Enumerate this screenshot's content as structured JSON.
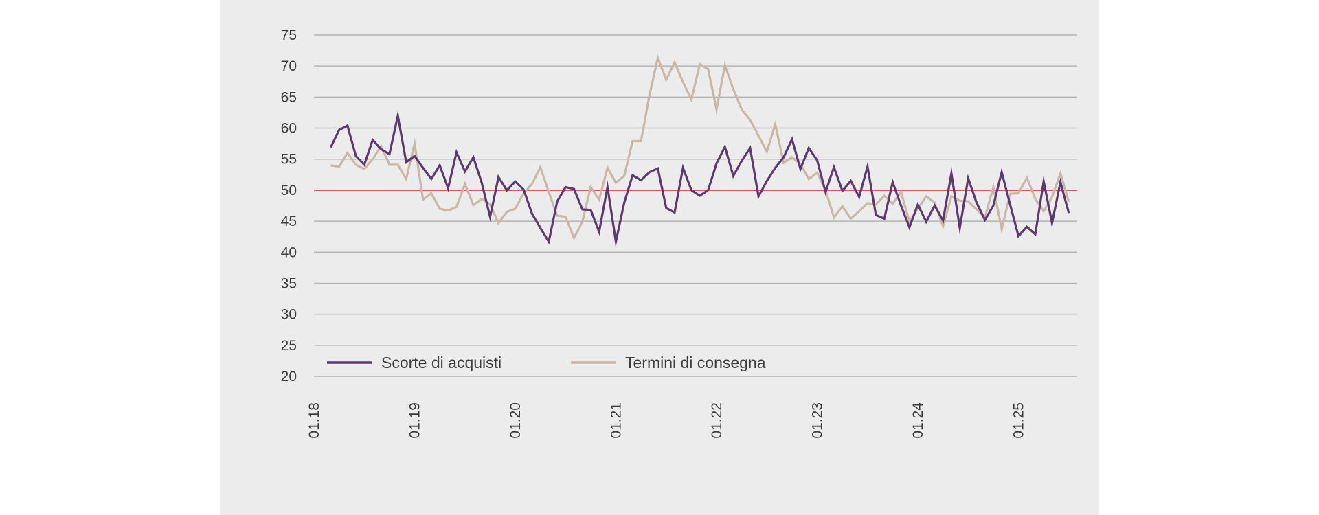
{
  "chart_data": {
    "type": "line",
    "title": "",
    "xlabel": "",
    "ylabel": "",
    "ylim": [
      20,
      75
    ],
    "y_ticks": [
      "75",
      "70",
      "65",
      "60",
      "55",
      "50",
      "45",
      "40",
      "35",
      "30",
      "25",
      "20"
    ],
    "x_ticks": [
      "01.18",
      "01.19",
      "01.20",
      "01.21",
      "01.22",
      "01.23",
      "01.24",
      "01.25"
    ],
    "x_start": "2018-01",
    "x_end": "2025-08",
    "reference_line": {
      "value": 50,
      "color": "#d9282f"
    },
    "grid": true,
    "legend_position": "bottom-left",
    "series": [
      {
        "name": "Scorte di acquisti",
        "color": "#5b3a6e",
        "start": "2018-03",
        "values": [
          56.9,
          59.7,
          60.4,
          55.5,
          54.1,
          58.1,
          56.6,
          55.8,
          62.0,
          54.5,
          55.5,
          53.6,
          51.8,
          54.0,
          50.3,
          56.1,
          53.0,
          55.3,
          51.2,
          45.7,
          52.1,
          50.0,
          51.4,
          50.1,
          46.2,
          43.9,
          41.7,
          48.2,
          50.5,
          50.2,
          46.9,
          46.8,
          43.3,
          50.5,
          41.7,
          48.0,
          52.4,
          51.6,
          52.9,
          53.5,
          47.1,
          46.4,
          53.6,
          50.0,
          49.1,
          50.0,
          54.3,
          57.0,
          52.3,
          54.7,
          56.8,
          49.0,
          51.5,
          53.6,
          55.3,
          58.2,
          53.4,
          56.8,
          54.8,
          49.7,
          53.7,
          49.9,
          51.5,
          48.9,
          53.8,
          46.0,
          45.4,
          51.3,
          47.5,
          44.0,
          47.7,
          44.9,
          47.5,
          45.1,
          52.7,
          43.9,
          51.9,
          48.0,
          45.2,
          47.5,
          52.9,
          47.7,
          42.6,
          44.1,
          42.9,
          51.4,
          44.7,
          51.3,
          46.3
        ]
      },
      {
        "name": "Termini di consegna",
        "color": "#c9b8a8",
        "start": "2018-03",
        "values": [
          54.0,
          53.8,
          56.0,
          54.1,
          53.4,
          55.0,
          57.1,
          54.1,
          54.1,
          51.8,
          57.5,
          48.5,
          49.5,
          47.0,
          46.7,
          47.3,
          51.0,
          47.6,
          48.6,
          47.7,
          44.7,
          46.5,
          47.0,
          49.5,
          51.0,
          53.7,
          49.7,
          45.9,
          45.7,
          42.3,
          44.9,
          50.5,
          48.5,
          53.6,
          51.2,
          52.3,
          57.9,
          57.9,
          65.3,
          71.3,
          67.8,
          70.6,
          67.4,
          64.6,
          70.3,
          69.5,
          63.0,
          70.1,
          66.3,
          63.0,
          61.3,
          58.8,
          56.2,
          60.6,
          54.4,
          55.3,
          54.2,
          51.8,
          52.8,
          50.0,
          45.6,
          47.4,
          45.4,
          46.6,
          47.9,
          47.7,
          49.1,
          47.8,
          49.7,
          44.9,
          47.0,
          49.0,
          48.0,
          44.2,
          49.0,
          48.3,
          48.2,
          46.9,
          45.6,
          50.5,
          43.7,
          49.4,
          49.5,
          52.0,
          48.6,
          46.6,
          48.9,
          52.7,
          48.1
        ]
      }
    ]
  }
}
